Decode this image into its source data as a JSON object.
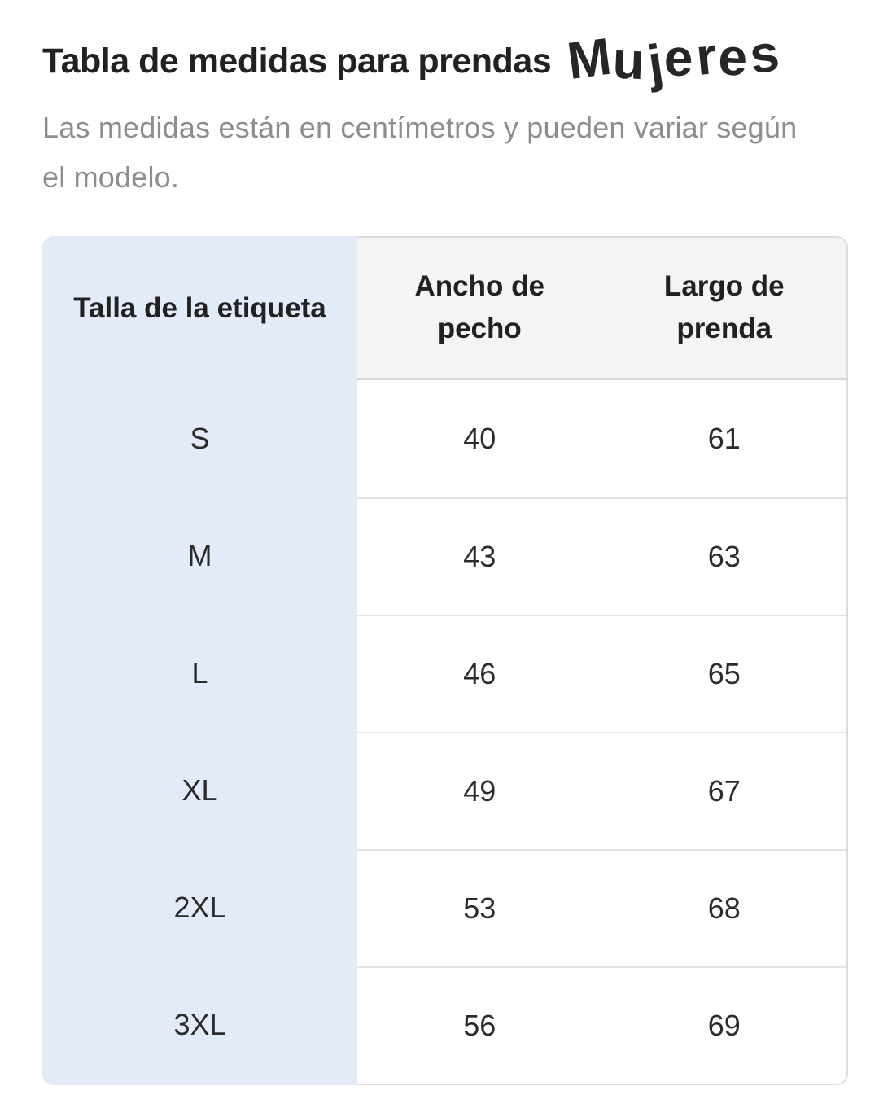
{
  "page": {
    "title": "Tabla de medidas para prendas",
    "brand": "Mujeres",
    "subtitle": "Las medidas están en centímetros y pueden variar según el modelo."
  },
  "table": {
    "row_header": "Talla de la etiqueta",
    "columns": [
      {
        "label": "Ancho de pecho"
      },
      {
        "label": "Largo de prenda"
      }
    ],
    "rows": [
      {
        "size": "S",
        "chest": "40",
        "length": "61"
      },
      {
        "size": "M",
        "chest": "43",
        "length": "63"
      },
      {
        "size": "L",
        "chest": "46",
        "length": "65"
      },
      {
        "size": "XL",
        "chest": "49",
        "length": "67"
      },
      {
        "size": "2XL",
        "chest": "53",
        "length": "68"
      },
      {
        "size": "3XL",
        "chest": "56",
        "length": "69"
      }
    ]
  },
  "colors": {
    "label_column_blue": "#e3ebf9",
    "header_gray": "#f4f4f4",
    "row_divider": "#e3e3e3",
    "outer_border": "#dcdcdc",
    "title_text": "#212121",
    "subtitle_text": "#8d8d8d",
    "body_text": "#2b2b2b"
  }
}
